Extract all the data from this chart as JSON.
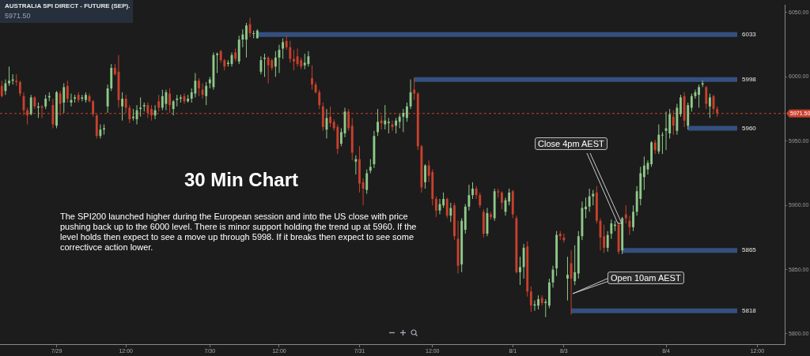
{
  "chart_data": {
    "type": "candlestick",
    "title": "AUSTRALIA SPI DIRECT - FUTURE (SEP).",
    "subtitle": "5971.50",
    "categories": [
      null,
      null,
      null,
      null,
      null,
      null,
      null,
      null,
      null,
      null,
      null,
      null,
      null,
      null,
      null,
      "7/29",
      null,
      null,
      null,
      null,
      null,
      null,
      null,
      null,
      null,
      null,
      null,
      null,
      null,
      null,
      null,
      null,
      null,
      null,
      "12:00",
      null,
      null,
      null,
      null,
      null,
      null,
      null,
      null,
      null,
      null,
      null,
      null,
      null,
      null,
      null,
      null,
      null,
      null,
      null,
      null,
      null,
      null,
      "7/30",
      null,
      null,
      null,
      null,
      null,
      null,
      null,
      null,
      null,
      null,
      null,
      null,
      null,
      null,
      null,
      null,
      null,
      null,
      "12:00",
      null,
      null,
      null,
      null,
      null,
      null,
      null,
      null,
      null,
      null,
      null,
      null,
      null,
      null,
      null,
      null,
      null,
      null,
      null,
      null,
      null,
      "7/31",
      null,
      null,
      null,
      null,
      null,
      null,
      null,
      null,
      null,
      null,
      null,
      null,
      null,
      null,
      null,
      null,
      null,
      null,
      null,
      "12:00",
      null,
      null,
      null,
      null,
      null,
      null,
      null,
      null,
      null,
      null,
      null,
      null,
      null,
      null,
      null,
      null,
      null,
      null,
      null,
      null,
      null,
      "8/1",
      null,
      null,
      null,
      null,
      null,
      null,
      null,
      null,
      null,
      null,
      null,
      null,
      null,
      "8/3",
      null,
      null,
      null,
      null,
      null,
      null,
      null,
      null,
      null,
      null,
      null,
      null,
      null,
      null,
      null,
      null,
      null,
      null,
      null,
      null,
      null,
      null,
      null,
      null,
      null,
      null,
      null,
      "8/4",
      null,
      null,
      null,
      null,
      null,
      null,
      null,
      null,
      null,
      null,
      null,
      null,
      null,
      null,
      null,
      null,
      null,
      null,
      null,
      null,
      null,
      null,
      null,
      null,
      "12:00",
      null,
      null,
      null,
      null,
      null,
      null,
      null
    ],
    "ohlc": [
      [
        5993,
        5997,
        5984,
        5985
      ],
      [
        5989,
        5998,
        5986,
        5995
      ],
      [
        5995,
        6008,
        5993,
        5997
      ],
      [
        5997,
        6002,
        5994,
        5998
      ],
      [
        5997,
        6002,
        5993,
        5996
      ],
      [
        5996,
        5997,
        5985,
        5987
      ],
      [
        5985,
        5988,
        5970,
        5974
      ],
      [
        5974,
        5976,
        5963,
        5970
      ],
      [
        5971,
        5986,
        5970,
        5984
      ],
      [
        5984,
        5985,
        5975,
        5977
      ],
      [
        5976,
        5980,
        5968,
        5977
      ],
      [
        5977,
        5978,
        5968,
        5976
      ],
      [
        5977,
        5986,
        5975,
        5983
      ],
      [
        5984,
        5988,
        5981,
        5985
      ],
      [
        5978,
        5983,
        5960,
        5963
      ],
      [
        5962,
        5989,
        5960,
        5988
      ],
      [
        5987,
        5989,
        5970,
        5979
      ],
      [
        5980,
        5995,
        5972,
        5992
      ],
      [
        5993,
        5997,
        5980,
        5983
      ],
      [
        5980,
        5987,
        5977,
        5982
      ],
      [
        5983,
        5986,
        5980,
        5984
      ],
      [
        5986,
        5988,
        5980,
        5982
      ],
      [
        5983,
        5986,
        5981,
        5984
      ],
      [
        5982,
        5988,
        5980,
        5986
      ],
      [
        5985,
        5987,
        5980,
        5981
      ],
      [
        5981,
        5982,
        5969,
        5971
      ],
      [
        5970,
        5971,
        5952,
        5954
      ],
      [
        5954,
        5963,
        5952,
        5959
      ],
      [
        5959,
        5963,
        5955,
        5960
      ],
      [
        5977,
        5994,
        5972,
        5991
      ],
      [
        5991,
        6010,
        5989,
        6007
      ],
      [
        6007,
        6010,
        6001,
        6002
      ],
      [
        6004,
        6017,
        5976,
        5982
      ],
      [
        5977,
        5988,
        5966,
        5983
      ],
      [
        5983,
        5986,
        5972,
        5976
      ],
      [
        5976,
        5978,
        5964,
        5967
      ],
      [
        5968,
        5975,
        5966,
        5969
      ],
      [
        5967,
        5978,
        5963,
        5974
      ],
      [
        5975,
        5984,
        5969,
        5976
      ],
      [
        5977,
        5980,
        5973,
        5978
      ],
      [
        5978,
        5980,
        5968,
        5972
      ],
      [
        5975,
        5978,
        5966,
        5970
      ],
      [
        5970,
        5978,
        5967,
        5974
      ],
      [
        5981,
        5986,
        5973,
        5976
      ],
      [
        5976,
        5990,
        5974,
        5985
      ],
      [
        5979,
        5990,
        5974,
        5988
      ],
      [
        5987,
        5991,
        5972,
        5978
      ],
      [
        5975,
        5982,
        5970,
        5981
      ],
      [
        5982,
        5986,
        5977,
        5983
      ],
      [
        5983,
        5986,
        5980,
        5984
      ],
      [
        5985,
        5987,
        5979,
        5981
      ],
      [
        5981,
        5986,
        5980,
        5983
      ],
      [
        5983,
        5991,
        5980,
        5988
      ],
      [
        5987,
        6003,
        5984,
        5997
      ],
      [
        5997,
        5999,
        5985,
        5991
      ],
      [
        5990,
        5995,
        5983,
        5986
      ],
      [
        5985,
        5996,
        5978,
        5993
      ],
      [
        5995,
        6000,
        5991,
        5998
      ],
      [
        5992,
        6019,
        5990,
        6017
      ],
      [
        6017,
        6019,
        6003,
        6018
      ],
      [
        6020,
        6021,
        6011,
        6013
      ],
      [
        6013,
        6014,
        6005,
        6008
      ],
      [
        6010,
        6013,
        6008,
        6011
      ],
      [
        6010,
        6019,
        6008,
        6017
      ],
      [
        6019,
        6022,
        6012,
        6014
      ],
      [
        6012,
        6032,
        6010,
        6029
      ],
      [
        6029,
        6037,
        6023,
        6033
      ],
      [
        6029,
        6042,
        6015,
        6040
      ],
      [
        6041,
        6046,
        6031,
        6034
      ],
      [
        6034,
        6036,
        6030,
        6034
      ],
      [
        6030,
        6037,
        6030,
        6036
      ],
      [
        6004,
        6016,
        6002,
        6013
      ],
      [
        6014,
        6018,
        6000,
        6015
      ],
      [
        6015,
        6016,
        5995,
        6009
      ],
      [
        6013,
        6014,
        6005,
        6007
      ],
      [
        6008,
        6020,
        6000,
        6015
      ],
      [
        6015,
        6025,
        6003,
        6021
      ],
      [
        6022,
        6030,
        6014,
        6027
      ],
      [
        6028,
        6032,
        6021,
        6023
      ],
      [
        6023,
        6028,
        6011,
        6014
      ],
      [
        6014,
        6021,
        6005,
        6012
      ],
      [
        6016,
        6022,
        6008,
        6010
      ],
      [
        6013,
        6015,
        6006,
        6008
      ],
      [
        6009,
        6018,
        6006,
        6011
      ],
      [
        6010,
        6020,
        6008,
        6016
      ],
      [
        5999,
        6009,
        5990,
        5994
      ],
      [
        5994,
        5996,
        5987,
        5988
      ],
      [
        5988,
        5990,
        5975,
        5978
      ],
      [
        5977,
        5980,
        5958,
        5961
      ],
      [
        5959,
        5975,
        5952,
        5968
      ],
      [
        5969,
        5977,
        5961,
        5964
      ],
      [
        5965,
        5967,
        5958,
        5960
      ],
      [
        5961,
        5963,
        5940,
        5944
      ],
      [
        5948,
        5960,
        5946,
        5957
      ],
      [
        5956,
        5976,
        5953,
        5973
      ],
      [
        5973,
        5975,
        5958,
        5960
      ],
      [
        5962,
        5968,
        5935,
        5941
      ],
      [
        5934,
        5939,
        5924,
        5936
      ],
      [
        5936,
        5946,
        5910,
        5917
      ],
      [
        5918,
        5921,
        5900,
        5913
      ],
      [
        5912,
        5928,
        5909,
        5925
      ],
      [
        5927,
        5936,
        5925,
        5930
      ],
      [
        5932,
        5958,
        5929,
        5954
      ],
      [
        5957,
        5975,
        5954,
        5965
      ],
      [
        5966,
        5970,
        5959,
        5964
      ],
      [
        5963,
        5978,
        5959,
        5966
      ],
      [
        5964,
        5968,
        5956,
        5965
      ],
      [
        5963,
        5966,
        5958,
        5961
      ],
      [
        5962,
        5968,
        5956,
        5966
      ],
      [
        5965,
        5971,
        5960,
        5969
      ],
      [
        5969,
        5975,
        5957,
        5972
      ],
      [
        5968,
        5980,
        5965,
        5977
      ],
      [
        5977,
        5998,
        5975,
        5988
      ],
      [
        5990,
        5999,
        5982,
        5987
      ],
      [
        5987,
        5988,
        5943,
        5946
      ],
      [
        5946,
        5947,
        5910,
        5914
      ],
      [
        5918,
        5932,
        5913,
        5931
      ],
      [
        5931,
        5935,
        5918,
        5923
      ],
      [
        5926,
        5928,
        5900,
        5905
      ],
      [
        5905,
        5907,
        5891,
        5896
      ],
      [
        5896,
        5905,
        5893,
        5901
      ],
      [
        5900,
        5910,
        5898,
        5905
      ],
      [
        5905,
        5906,
        5890,
        5892
      ],
      [
        5892,
        5902,
        5887,
        5898
      ],
      [
        5900,
        5902,
        5873,
        5876
      ],
      [
        5874,
        5888,
        5847,
        5853
      ],
      [
        5854,
        5890,
        5848,
        5888
      ],
      [
        5881,
        5901,
        5878,
        5899
      ],
      [
        5899,
        5916,
        5896,
        5908
      ],
      [
        5908,
        5918,
        5905,
        5913
      ],
      [
        5913,
        5915,
        5905,
        5908
      ],
      [
        5908,
        5910,
        5898,
        5900
      ],
      [
        5895,
        5897,
        5875,
        5878
      ],
      [
        5878,
        5898,
        5876,
        5894
      ],
      [
        5893,
        5895,
        5889,
        5891
      ],
      [
        5890,
        5913,
        5888,
        5911
      ],
      [
        5911,
        5913,
        5906,
        5910
      ],
      [
        5910,
        5911,
        5897,
        5902
      ],
      [
        5895,
        5906,
        5892,
        5904
      ],
      [
        5903,
        5913,
        5900,
        5910
      ],
      [
        5911,
        5912,
        5890,
        5893
      ],
      [
        5890,
        5892,
        5847,
        5848
      ],
      [
        5848,
        5860,
        5838,
        5852
      ],
      [
        5852,
        5870,
        5843,
        5867
      ],
      [
        5868,
        5872,
        5829,
        5833
      ],
      [
        5833,
        5837,
        5817,
        5822
      ],
      [
        5822,
        5826,
        5818,
        5823
      ],
      [
        5822,
        5830,
        5819,
        5827
      ],
      [
        5828,
        5830,
        5822,
        5824
      ],
      [
        5824,
        5827,
        5813,
        5825
      ],
      [
        5822,
        5843,
        5820,
        5840
      ],
      [
        5840,
        5853,
        5836,
        5850
      ],
      [
        5851,
        5880,
        5845,
        5877
      ],
      [
        5878,
        5880,
        5873,
        5876
      ],
      [
        5875,
        5878,
        5871,
        5873
      ],
      [
        5843,
        5860,
        5826,
        5846
      ],
      [
        5855,
        5865,
        5815,
        5843
      ],
      [
        5841,
        5869,
        5838,
        5848
      ],
      [
        5847,
        5880,
        5843,
        5876
      ],
      [
        5876,
        5903,
        5873,
        5898
      ],
      [
        5897,
        5906,
        5890,
        5899
      ],
      [
        5899,
        5913,
        5895,
        5907
      ],
      [
        5907,
        5912,
        5900,
        5909
      ],
      [
        5910,
        5915,
        5886,
        5888
      ],
      [
        5888,
        5890,
        5865,
        5875
      ],
      [
        5876,
        5885,
        5863,
        5867
      ],
      [
        5867,
        5880,
        5864,
        5877
      ],
      [
        5878,
        5889,
        5874,
        5886
      ],
      [
        5884,
        5888,
        5880,
        5885
      ],
      [
        5885,
        5887,
        5862,
        5864
      ],
      [
        5865,
        5891,
        5862,
        5890
      ],
      [
        5893,
        5900,
        5886,
        5890
      ],
      [
        5888,
        5892,
        5877,
        5883
      ],
      [
        5883,
        5900,
        5880,
        5895
      ],
      [
        5895,
        5915,
        5892,
        5911
      ],
      [
        5905,
        5930,
        5900,
        5925
      ],
      [
        5922,
        5938,
        5912,
        5931
      ],
      [
        5928,
        5935,
        5924,
        5933
      ],
      [
        5932,
        5950,
        5930,
        5949
      ],
      [
        5949,
        5951,
        5940,
        5943
      ],
      [
        5942,
        5963,
        5940,
        5955
      ],
      [
        5955,
        5957,
        5940,
        5955
      ],
      [
        5958,
        5973,
        5943,
        5960
      ],
      [
        5956,
        5975,
        5952,
        5971
      ],
      [
        5969,
        5974,
        5955,
        5962
      ],
      [
        5958,
        5979,
        5955,
        5976
      ],
      [
        5971,
        5986,
        5969,
        5984
      ],
      [
        5985,
        5988,
        5961,
        5966
      ],
      [
        5962,
        5980,
        5959,
        5978
      ],
      [
        5976,
        5987,
        5973,
        5985
      ],
      [
        5985,
        5990,
        5983,
        5988
      ],
      [
        5986,
        5994,
        5976,
        5992
      ],
      [
        5994,
        5997,
        5992,
        5995
      ],
      [
        5992,
        5993,
        5975,
        5979
      ],
      [
        5977,
        5987,
        5968,
        5984
      ],
      [
        5985,
        5986,
        5972,
        5975
      ],
      [
        5975,
        5977,
        5969,
        5971.5
      ],
      null,
      null,
      null,
      null,
      null,
      null,
      null,
      null,
      null,
      null,
      null,
      null,
      null,
      null,
      null,
      null,
      null,
      null
    ],
    "colors": [
      "#c9412c",
      "#8fc98a",
      "#8fc98a",
      "#8fc98a",
      "#c9412c",
      "#c9412c",
      "#c9412c",
      "#c9412c",
      "#8fc98a",
      "#c9412c",
      "#8fc98a",
      "#c9412c",
      "#8fc98a",
      "#8fc98a",
      "#c9412c",
      "#8fc98a",
      "#c9412c",
      "#8fc98a",
      "#c9412c",
      "#8fc98a",
      "#8fc98a",
      "#c9412c",
      "#8fc98a",
      "#8fc98a",
      "#c9412c",
      "#c9412c",
      "#c9412c",
      "#8fc98a",
      "#8fc98a",
      "#8fc98a",
      "#8fc98a",
      "#c9412c",
      "#c9412c",
      "#8fc98a",
      "#c9412c",
      "#c9412c",
      "#8fc98a",
      "#8fc98a",
      "#8fc98a",
      "#8fc98a",
      "#c9412c",
      "#c9412c",
      "#8fc98a",
      "#c9412c",
      "#8fc98a",
      "#8fc98a",
      "#c9412c",
      "#8fc98a",
      "#8fc98a",
      "#8fc98a",
      "#c9412c",
      "#8fc98a",
      "#8fc98a",
      "#8fc98a",
      "#c9412c",
      "#c9412c",
      "#8fc98a",
      "#8fc98a",
      "#8fc98a",
      "#8fc98a",
      "#c9412c",
      "#c9412c",
      "#8fc98a",
      "#8fc98a",
      "#c9412c",
      "#8fc98a",
      "#8fc98a",
      "#8fc98a",
      "#c9412c",
      "#8fc98a",
      "#8fc98a",
      "#8fc98a",
      "#8fc98a",
      "#c9412c",
      "#c9412c",
      "#8fc98a",
      "#8fc98a",
      "#8fc98a",
      "#c9412c",
      "#c9412c",
      "#c9412c",
      "#c9412c",
      "#c9412c",
      "#8fc98a",
      "#8fc98a",
      "#c9412c",
      "#c9412c",
      "#c9412c",
      "#c9412c",
      "#8fc98a",
      "#c9412c",
      "#c9412c",
      "#c9412c",
      "#8fc98a",
      "#8fc98a",
      "#c9412c",
      "#c9412c",
      "#8fc98a",
      "#c9412c",
      "#c9412c",
      "#8fc98a",
      "#8fc98a",
      "#8fc98a",
      "#8fc98a",
      "#c9412c",
      "#8fc98a",
      "#8fc98a",
      "#c9412c",
      "#8fc98a",
      "#8fc98a",
      "#8fc98a",
      "#8fc98a",
      "#8fc98a",
      "#c9412c",
      "#c9412c",
      "#c9412c",
      "#8fc98a",
      "#c9412c",
      "#c9412c",
      "#c9412c",
      "#8fc98a",
      "#8fc98a",
      "#c9412c",
      "#8fc98a",
      "#c9412c",
      "#c9412c",
      "#8fc98a",
      "#8fc98a",
      "#8fc98a",
      "#8fc98a",
      "#c9412c",
      "#c9412c",
      "#c9412c",
      "#8fc98a",
      "#c9412c",
      "#8fc98a",
      "#c9412c",
      "#c9412c",
      "#8fc98a",
      "#8fc98a",
      "#c9412c",
      "#c9412c",
      "#8fc98a",
      "#8fc98a",
      "#c9412c",
      "#c9412c",
      "#8fc98a",
      "#8fc98a",
      "#c9412c",
      "#8fc98a",
      "#8fc98a",
      "#8fc98a",
      "#8fc98a",
      "#c9412c",
      "#c9412c",
      "#8fc98a",
      "#c9412c",
      "#8fc98a",
      "#8fc98a",
      "#8fc98a",
      "#8fc98a",
      "#8fc98a",
      "#8fc98a",
      "#c9412c",
      "#c9412c",
      "#c9412c",
      "#8fc98a",
      "#8fc98a",
      "#8fc98a",
      "#c9412c",
      "#8fc98a",
      "#c9412c",
      "#c9412c",
      "#8fc98a",
      "#8fc98a",
      "#8fc98a",
      "#8fc98a",
      "#8fc98a",
      "#8fc98a",
      "#c9412c",
      "#8fc98a",
      "#8fc98a",
      "#8fc98a",
      "#8fc98a",
      "#c9412c",
      "#8fc98a",
      "#8fc98a",
      "#c9412c",
      "#8fc98a",
      "#8fc98a",
      "#8fc98a",
      "#8fc98a",
      "#8fc98a",
      "#c9412c",
      "#8fc98a",
      "#c9412c",
      "#c9412c",
      null,
      null,
      null,
      null,
      null,
      null,
      null,
      null,
      null,
      null,
      null,
      null,
      null,
      null,
      null,
      null,
      null,
      null
    ],
    "ylim": [
      5792,
      6056
    ],
    "yticks": [
      {
        "value": 5800,
        "label": "5800.00"
      },
      {
        "value": 5850,
        "label": "5850.00"
      },
      {
        "value": 5900,
        "label": "5900.00"
      },
      {
        "value": 5950,
        "label": "5950.00"
      },
      {
        "value": 6000,
        "label": "6000.00"
      },
      {
        "value": 6050,
        "label": "6050.00"
      }
    ],
    "grid": false,
    "legend": false,
    "ref_lines": [
      {
        "axis": "y",
        "value": 6033,
        "label": "6033",
        "color": "#34507f"
      },
      {
        "axis": "y",
        "value": 5998,
        "label": "5998",
        "color": "#34507f"
      },
      {
        "axis": "y",
        "value": 5960,
        "label": "5960",
        "color": "#34507f"
      },
      {
        "axis": "y",
        "value": 5865,
        "label": "5865",
        "color": "#34507f"
      },
      {
        "axis": "y",
        "value": 5818,
        "label": "5818",
        "color": "#34507f"
      },
      {
        "axis": "y",
        "value": 5971.5,
        "label": "5971.50",
        "color": "#c9412c",
        "line_style": "dashed"
      }
    ],
    "annotations": [
      "30 Min Chart",
      "The SPI200 launched higher during the European session and into the US close with price pushing back up to the 6000 level. There is minor support holding the trend up at 5960. If the level holds then expect to see a move up through 5998. If it breaks then expect to see some correctivce action lower.",
      "Close 4pm AEST",
      "Open 10am AEST"
    ]
  }
}
